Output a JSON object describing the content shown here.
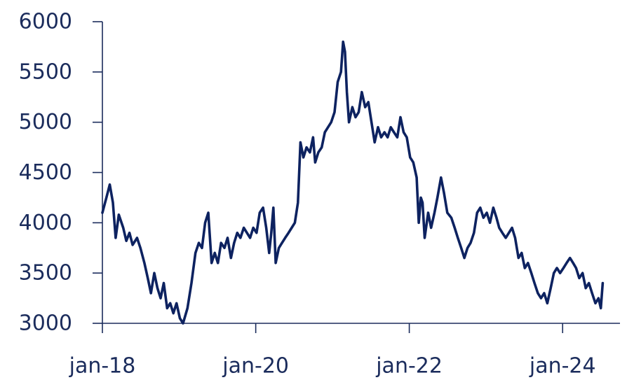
{
  "chart_data": {
    "type": "line",
    "title": "",
    "xlabel": "",
    "ylabel": "",
    "xlim": [
      "2018-01-01",
      "2024-09-30"
    ],
    "ylim": [
      3000,
      6000
    ],
    "grid": false,
    "legend": "none",
    "line_color": "#0d2260",
    "axis_color": "#1b2c5c",
    "x_ticks": [
      {
        "date": "2018-01-01",
        "label": "jan-18"
      },
      {
        "date": "2020-01-01",
        "label": "jan-20"
      },
      {
        "date": "2022-01-01",
        "label": "jan-22"
      },
      {
        "date": "2024-01-01",
        "label": "jan-24"
      }
    ],
    "y_ticks": [
      {
        "value": 3000,
        "label": "3000"
      },
      {
        "value": 3500,
        "label": "3500"
      },
      {
        "value": 4000,
        "label": "4000"
      },
      {
        "value": 4500,
        "label": "4500"
      },
      {
        "value": 5000,
        "label": "5000"
      },
      {
        "value": 5500,
        "label": "5500"
      },
      {
        "value": 6000,
        "label": "6000"
      }
    ],
    "series": [
      {
        "points": [
          [
            "2018-01-01",
            4100
          ],
          [
            "2018-01-20",
            4250
          ],
          [
            "2018-02-05",
            4380
          ],
          [
            "2018-02-20",
            4200
          ],
          [
            "2018-03-05",
            3850
          ],
          [
            "2018-03-20",
            4080
          ],
          [
            "2018-04-10",
            3950
          ],
          [
            "2018-04-25",
            3820
          ],
          [
            "2018-05-10",
            3900
          ],
          [
            "2018-05-25",
            3780
          ],
          [
            "2018-06-15",
            3850
          ],
          [
            "2018-07-01",
            3750
          ],
          [
            "2018-07-20",
            3600
          ],
          [
            "2018-08-05",
            3450
          ],
          [
            "2018-08-20",
            3300
          ],
          [
            "2018-09-05",
            3500
          ],
          [
            "2018-09-20",
            3350
          ],
          [
            "2018-10-05",
            3250
          ],
          [
            "2018-10-20",
            3400
          ],
          [
            "2018-11-05",
            3150
          ],
          [
            "2018-11-20",
            3200
          ],
          [
            "2018-12-05",
            3100
          ],
          [
            "2018-12-20",
            3200
          ],
          [
            "2019-01-05",
            3050
          ],
          [
            "2019-01-20",
            3000
          ],
          [
            "2019-02-10",
            3150
          ],
          [
            "2019-03-01",
            3400
          ],
          [
            "2019-03-20",
            3700
          ],
          [
            "2019-04-05",
            3800
          ],
          [
            "2019-04-20",
            3750
          ],
          [
            "2019-05-05",
            4000
          ],
          [
            "2019-05-20",
            4100
          ],
          [
            "2019-06-05",
            3600
          ],
          [
            "2019-06-20",
            3700
          ],
          [
            "2019-07-05",
            3600
          ],
          [
            "2019-07-20",
            3800
          ],
          [
            "2019-08-05",
            3750
          ],
          [
            "2019-08-20",
            3850
          ],
          [
            "2019-09-05",
            3650
          ],
          [
            "2019-09-20",
            3800
          ],
          [
            "2019-10-05",
            3900
          ],
          [
            "2019-10-20",
            3850
          ],
          [
            "2019-11-05",
            3950
          ],
          [
            "2019-11-20",
            3900
          ],
          [
            "2019-12-05",
            3850
          ],
          [
            "2019-12-20",
            3950
          ],
          [
            "2020-01-05",
            3900
          ],
          [
            "2020-01-20",
            4100
          ],
          [
            "2020-02-05",
            4150
          ],
          [
            "2020-02-20",
            3950
          ],
          [
            "2020-03-05",
            3700
          ],
          [
            "2020-03-15",
            3900
          ],
          [
            "2020-03-25",
            4150
          ],
          [
            "2020-04-05",
            3600
          ],
          [
            "2020-04-20",
            3750
          ],
          [
            "2020-05-05",
            3800
          ],
          [
            "2020-05-20",
            3850
          ],
          [
            "2020-06-05",
            3900
          ],
          [
            "2020-06-20",
            3950
          ],
          [
            "2020-07-05",
            4000
          ],
          [
            "2020-07-20",
            4200
          ],
          [
            "2020-08-01",
            4800
          ],
          [
            "2020-08-15",
            4650
          ],
          [
            "2020-08-30",
            4750
          ],
          [
            "2020-09-15",
            4700
          ],
          [
            "2020-09-30",
            4850
          ],
          [
            "2020-10-10",
            4600
          ],
          [
            "2020-10-25",
            4700
          ],
          [
            "2020-11-10",
            4750
          ],
          [
            "2020-11-25",
            4900
          ],
          [
            "2020-12-10",
            4950
          ],
          [
            "2020-12-25",
            5000
          ],
          [
            "2021-01-10",
            5100
          ],
          [
            "2021-01-25",
            5400
          ],
          [
            "2021-02-10",
            5500
          ],
          [
            "2021-02-20",
            5800
          ],
          [
            "2021-03-01",
            5700
          ],
          [
            "2021-03-10",
            5300
          ],
          [
            "2021-03-20",
            5000
          ],
          [
            "2021-04-05",
            5150
          ],
          [
            "2021-04-20",
            5050
          ],
          [
            "2021-05-05",
            5100
          ],
          [
            "2021-05-20",
            5300
          ],
          [
            "2021-06-05",
            5150
          ],
          [
            "2021-06-20",
            5200
          ],
          [
            "2021-07-05",
            5000
          ],
          [
            "2021-07-20",
            4800
          ],
          [
            "2021-08-05",
            4950
          ],
          [
            "2021-08-20",
            4850
          ],
          [
            "2021-09-05",
            4900
          ],
          [
            "2021-09-20",
            4850
          ],
          [
            "2021-10-05",
            4950
          ],
          [
            "2021-10-20",
            4900
          ],
          [
            "2021-11-05",
            4850
          ],
          [
            "2021-11-20",
            5050
          ],
          [
            "2021-12-05",
            4900
          ],
          [
            "2021-12-20",
            4850
          ],
          [
            "2022-01-05",
            4650
          ],
          [
            "2022-01-20",
            4600
          ],
          [
            "2022-02-05",
            4450
          ],
          [
            "2022-02-15",
            4000
          ],
          [
            "2022-02-25",
            4250
          ],
          [
            "2022-03-05",
            4200
          ],
          [
            "2022-03-15",
            3850
          ],
          [
            "2022-04-01",
            4100
          ],
          [
            "2022-04-15",
            3950
          ],
          [
            "2022-05-01",
            4100
          ],
          [
            "2022-05-15",
            4250
          ],
          [
            "2022-06-01",
            4450
          ],
          [
            "2022-06-15",
            4300
          ],
          [
            "2022-07-01",
            4100
          ],
          [
            "2022-07-20",
            4050
          ],
          [
            "2022-08-05",
            3950
          ],
          [
            "2022-08-20",
            3850
          ],
          [
            "2022-09-05",
            3750
          ],
          [
            "2022-09-20",
            3650
          ],
          [
            "2022-10-05",
            3750
          ],
          [
            "2022-10-20",
            3800
          ],
          [
            "2022-11-05",
            3900
          ],
          [
            "2022-11-20",
            4100
          ],
          [
            "2022-12-05",
            4150
          ],
          [
            "2022-12-20",
            4050
          ],
          [
            "2023-01-05",
            4100
          ],
          [
            "2023-01-20",
            4000
          ],
          [
            "2023-02-05",
            4150
          ],
          [
            "2023-02-20",
            4050
          ],
          [
            "2023-03-05",
            3950
          ],
          [
            "2023-03-20",
            3900
          ],
          [
            "2023-04-05",
            3850
          ],
          [
            "2023-04-20",
            3900
          ],
          [
            "2023-05-05",
            3950
          ],
          [
            "2023-05-20",
            3850
          ],
          [
            "2023-06-05",
            3650
          ],
          [
            "2023-06-20",
            3700
          ],
          [
            "2023-07-05",
            3550
          ],
          [
            "2023-07-20",
            3600
          ],
          [
            "2023-08-05",
            3500
          ],
          [
            "2023-08-20",
            3400
          ],
          [
            "2023-09-05",
            3300
          ],
          [
            "2023-09-20",
            3250
          ],
          [
            "2023-10-05",
            3300
          ],
          [
            "2023-10-20",
            3200
          ],
          [
            "2023-11-05",
            3350
          ],
          [
            "2023-11-20",
            3500
          ],
          [
            "2023-12-05",
            3550
          ],
          [
            "2023-12-20",
            3500
          ],
          [
            "2024-01-05",
            3550
          ],
          [
            "2024-01-20",
            3600
          ],
          [
            "2024-02-05",
            3650
          ],
          [
            "2024-02-20",
            3600
          ],
          [
            "2024-03-05",
            3550
          ],
          [
            "2024-03-20",
            3450
          ],
          [
            "2024-04-05",
            3500
          ],
          [
            "2024-04-20",
            3350
          ],
          [
            "2024-05-05",
            3400
          ],
          [
            "2024-05-20",
            3300
          ],
          [
            "2024-06-05",
            3200
          ],
          [
            "2024-06-20",
            3250
          ],
          [
            "2024-07-01",
            3150
          ],
          [
            "2024-07-10",
            3400
          ]
        ]
      }
    ]
  }
}
